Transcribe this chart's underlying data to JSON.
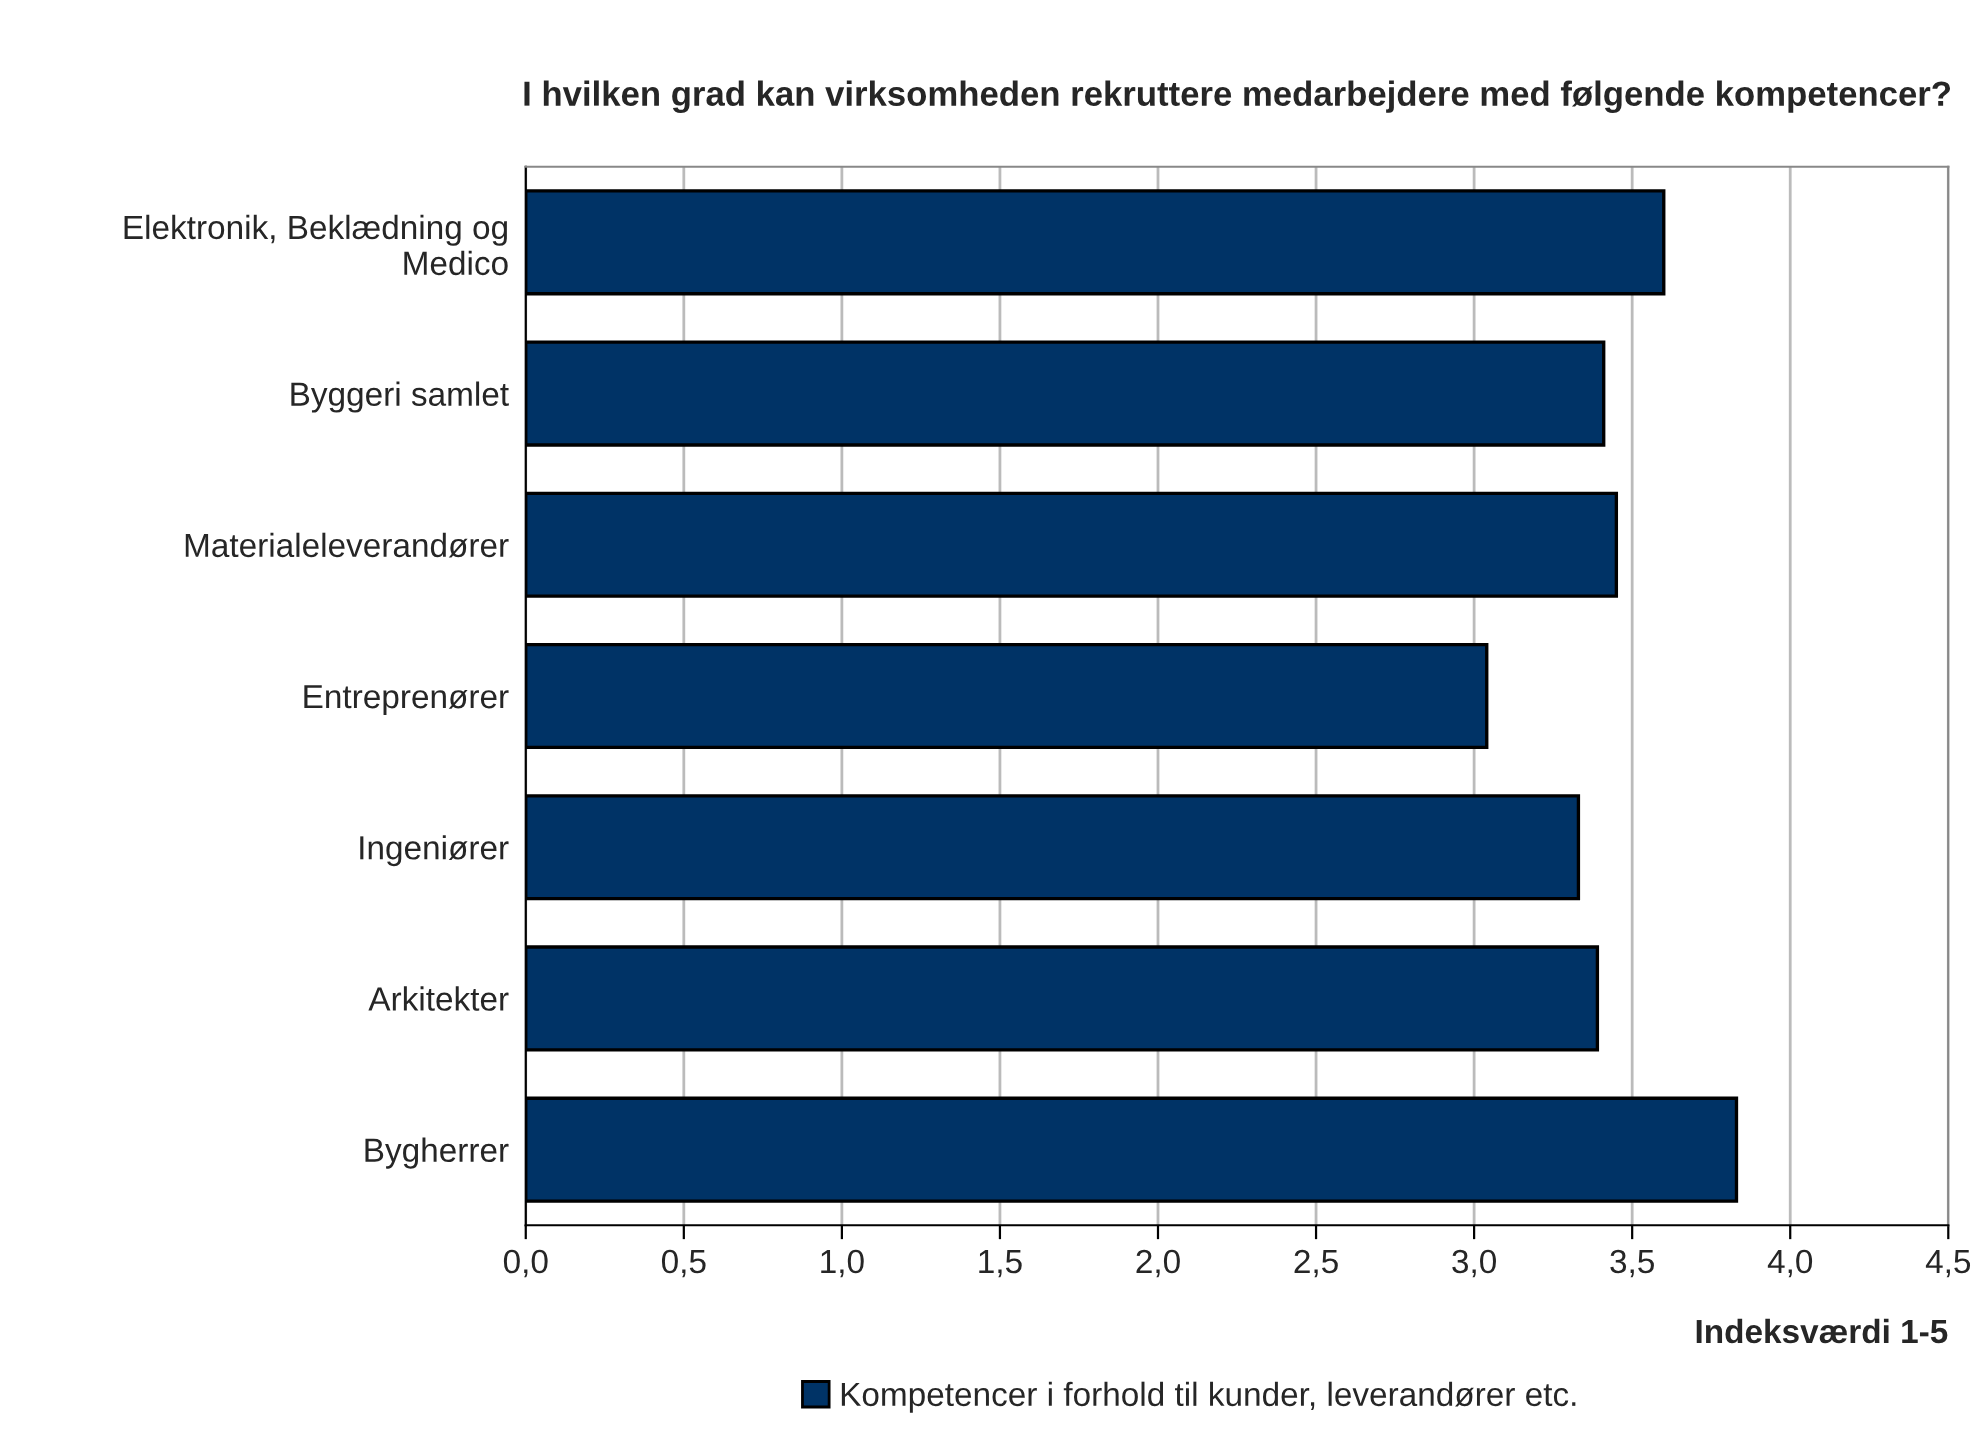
{
  "chart_data": {
    "type": "bar",
    "orientation": "horizontal",
    "title": "I hvilken grad kan virksomheden rekruttere medarbejdere med følgende kompetencer?",
    "xlabel": "Indeksværdi 1-5",
    "categories": [
      "Elektronik, Beklædning og\nMedico",
      "Byggeri samlet",
      "Materialeleverandører",
      "Entreprenører",
      "Ingeniører",
      "Arkitekter",
      "Bygherrer"
    ],
    "series": [
      {
        "name": "Kompetencer i forhold til kunder, leverandører etc.",
        "color": "#003366",
        "values": [
          3.6,
          3.41,
          3.45,
          3.04,
          3.33,
          3.39,
          3.83
        ]
      }
    ],
    "xlim": [
      0,
      4.5
    ],
    "xticks": [
      {
        "value": 0,
        "label": "0,0"
      },
      {
        "value": 0.5,
        "label": "0,5"
      },
      {
        "value": 1.0,
        "label": "1,0"
      },
      {
        "value": 1.5,
        "label": "1,5"
      },
      {
        "value": 2.0,
        "label": "2,0"
      },
      {
        "value": 2.5,
        "label": "2,5"
      },
      {
        "value": 3.0,
        "label": "3,0"
      },
      {
        "value": 3.5,
        "label": "3,5"
      },
      {
        "value": 4.0,
        "label": "4,0"
      },
      {
        "value": 4.5,
        "label": "4,5"
      }
    ],
    "grid": "x",
    "legend": "bottom"
  }
}
